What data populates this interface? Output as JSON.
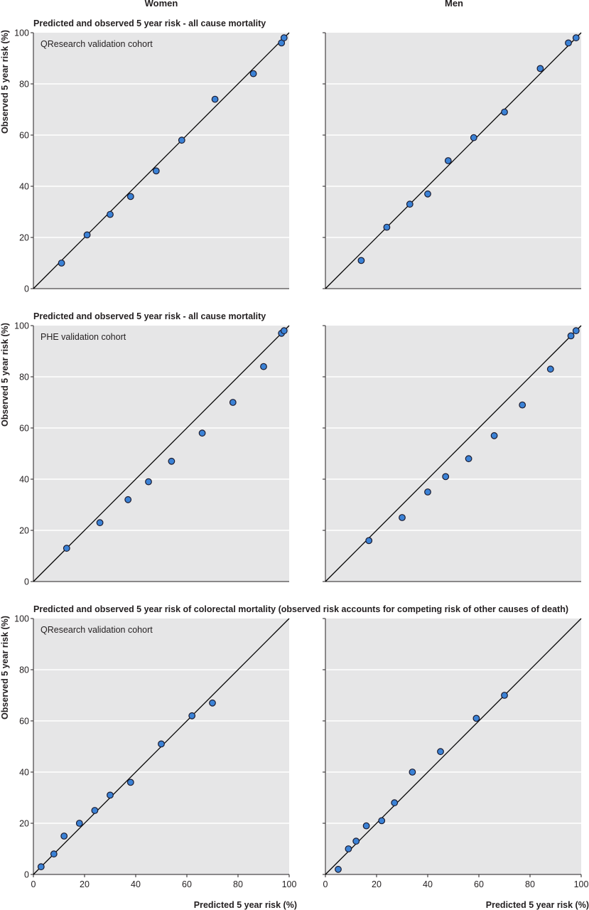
{
  "column_titles": [
    "Women",
    "Men"
  ],
  "row_titles": [
    "Predicted and observed 5 year risk - all cause mortality",
    "Predicted and observed 5 year risk - all cause mortality",
    "Predicted and observed 5 year risk of colorectal mortality (observed risk accounts for competing risk of other causes of death)"
  ],
  "ylabel": "Observed 5 year risk (%)",
  "xlabel": "Predicted 5 year risk (%)",
  "colors": {
    "panel_background": "#e6e6e7",
    "grid": "#ffffff",
    "marker_fill": "#3b82d6",
    "marker_stroke": "#1a1a2e",
    "line": "#000000"
  },
  "chart_data": [
    {
      "type": "scatter",
      "row": 0,
      "col": 0,
      "annotation": "QResearch validation cohort",
      "xlim": [
        0,
        100
      ],
      "ylim": [
        0,
        100
      ],
      "xticks": [
        0,
        20,
        40,
        60,
        80,
        100
      ],
      "yticks": [
        0,
        20,
        40,
        60,
        80,
        100
      ],
      "grid": true,
      "reference_line": "y = x",
      "x": [
        11,
        21,
        30,
        38,
        48,
        58,
        71,
        86,
        97,
        98
      ],
      "y": [
        10,
        21,
        29,
        36,
        46,
        58,
        74,
        84,
        96,
        98
      ]
    },
    {
      "type": "scatter",
      "row": 0,
      "col": 1,
      "annotation": "",
      "xlim": [
        0,
        100
      ],
      "ylim": [
        0,
        100
      ],
      "xticks": [
        0,
        20,
        40,
        60,
        80,
        100
      ],
      "yticks": [
        0,
        20,
        40,
        60,
        80,
        100
      ],
      "grid": true,
      "reference_line": "y = x",
      "x": [
        14,
        24,
        33,
        40,
        48,
        58,
        70,
        84,
        95,
        98
      ],
      "y": [
        11,
        24,
        33,
        37,
        50,
        59,
        69,
        86,
        96,
        98
      ]
    },
    {
      "type": "scatter",
      "row": 1,
      "col": 0,
      "annotation": "PHE validation cohort",
      "xlim": [
        0,
        100
      ],
      "ylim": [
        0,
        100
      ],
      "xticks": [
        0,
        20,
        40,
        60,
        80,
        100
      ],
      "yticks": [
        0,
        20,
        40,
        60,
        80,
        100
      ],
      "grid": true,
      "reference_line": "y = x",
      "x": [
        13,
        26,
        37,
        45,
        54,
        66,
        78,
        90,
        97,
        98
      ],
      "y": [
        13,
        23,
        32,
        39,
        47,
        58,
        70,
        84,
        97,
        98
      ]
    },
    {
      "type": "scatter",
      "row": 1,
      "col": 1,
      "annotation": "",
      "xlim": [
        0,
        100
      ],
      "ylim": [
        0,
        100
      ],
      "xticks": [
        0,
        20,
        40,
        60,
        80,
        100
      ],
      "yticks": [
        0,
        20,
        40,
        60,
        80,
        100
      ],
      "grid": true,
      "reference_line": "y = x",
      "x": [
        17,
        30,
        40,
        47,
        56,
        66,
        77,
        88,
        96,
        98
      ],
      "y": [
        16,
        25,
        35,
        41,
        48,
        57,
        69,
        83,
        96,
        98
      ]
    },
    {
      "type": "scatter",
      "row": 2,
      "col": 0,
      "annotation": "QResearch validation cohort",
      "xlim": [
        0,
        100
      ],
      "ylim": [
        0,
        100
      ],
      "xticks": [
        0,
        20,
        40,
        60,
        80,
        100
      ],
      "yticks": [
        0,
        20,
        40,
        60,
        80,
        100
      ],
      "grid": true,
      "reference_line": "y = x",
      "x": [
        3,
        8,
        12,
        18,
        24,
        30,
        38,
        50,
        62,
        70
      ],
      "y": [
        3,
        8,
        15,
        20,
        25,
        31,
        36,
        51,
        62,
        67
      ]
    },
    {
      "type": "scatter",
      "row": 2,
      "col": 1,
      "annotation": "",
      "xlim": [
        0,
        100
      ],
      "ylim": [
        0,
        100
      ],
      "xticks": [
        0,
        20,
        40,
        60,
        80,
        100
      ],
      "yticks": [
        0,
        20,
        40,
        60,
        80,
        100
      ],
      "grid": true,
      "reference_line": "y = x",
      "x": [
        5,
        9,
        12,
        16,
        22,
        27,
        34,
        45,
        59,
        70
      ],
      "y": [
        2,
        10,
        13,
        19,
        21,
        28,
        40,
        48,
        61,
        70
      ]
    }
  ]
}
